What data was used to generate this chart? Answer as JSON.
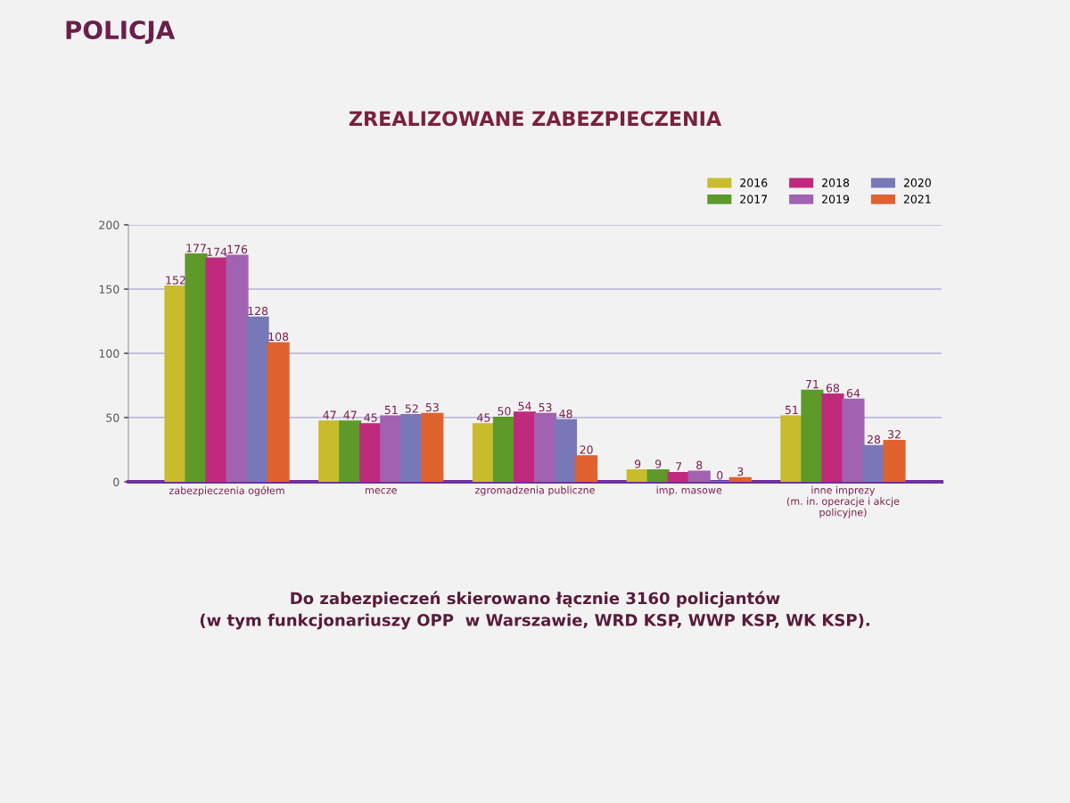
{
  "chart_data": {
    "type": "bar",
    "title": "ZREALIZOWANE ZABEZPIECZENIA",
    "categories": [
      "zabezpieczenia ogółem",
      "mecze",
      "zgromadzenia publiczne",
      "imp. masowe",
      "inne imprezy\n(m. in. operacje i akcje\npolicyjne)"
    ],
    "series": [
      {
        "name": "2016",
        "color": "#c8bc2c",
        "values": [
          152,
          47,
          45,
          9,
          51
        ]
      },
      {
        "name": "2017",
        "color": "#5e9a2a",
        "values": [
          177,
          47,
          50,
          9,
          71
        ]
      },
      {
        "name": "2018",
        "color": "#c02a7c",
        "values": [
          174,
          45,
          54,
          7,
          68
        ]
      },
      {
        "name": "2019",
        "color": "#a262b2",
        "values": [
          176,
          51,
          53,
          8,
          64
        ]
      },
      {
        "name": "2020",
        "color": "#7878b8",
        "values": [
          128,
          52,
          48,
          0,
          28
        ]
      },
      {
        "name": "2021",
        "color": "#e0622e",
        "values": [
          108,
          53,
          20,
          3,
          32
        ]
      }
    ],
    "ylim": [
      0,
      200
    ],
    "yticks": [
      0,
      50,
      100,
      150,
      200
    ],
    "grid": "y",
    "legend": "top right",
    "data_labels": true,
    "annotations": [
      "POLICJA",
      "Do zabezpieczeń skierowano łącznie 3160 policjantów\n(w tym funkcjonariuszy OPP  w Warszawie, WRD KSP, WWP KSP, WK KSP)."
    ]
  }
}
